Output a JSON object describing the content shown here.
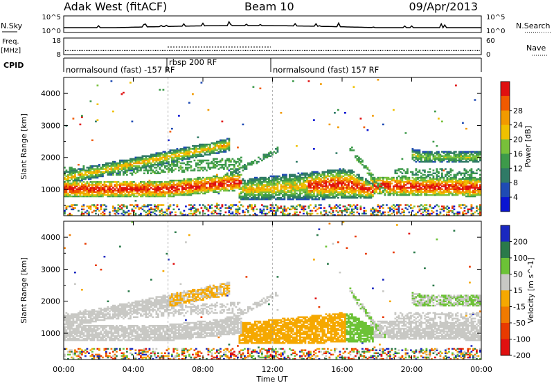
{
  "header": {
    "station": "Adak West (fitACF)",
    "beam": "Beam 10",
    "date": "09/Apr/2013"
  },
  "noise_panel": {
    "left_label": "N.Sky",
    "left_ticks": [
      "10^5",
      "10^0"
    ],
    "right_label": "N.Search",
    "right_ticks": [
      "10^5",
      "10^0"
    ]
  },
  "freq_panel": {
    "left_label_line1": "Freq.",
    "left_label_line2": "[MHz]",
    "left_ticks": [
      "18",
      "8"
    ],
    "right_label": "Nave",
    "right_ticks": [
      "60",
      "0"
    ]
  },
  "cpid_panel": {
    "label": "CPID",
    "programs": [
      {
        "name": "normalsound (fast) -157 RF",
        "start": "00:00",
        "end": "06:00"
      },
      {
        "name": "rbsp 200 RF",
        "start": "06:00",
        "end": "12:00"
      },
      {
        "name": "normalsound (fast) 157 RF",
        "start": "12:00",
        "end": "24:00"
      }
    ]
  },
  "chart_data": [
    {
      "type": "heatmap",
      "name": "power",
      "ylabel": "Slant Range [km]",
      "y_ticks": [
        "1000",
        "2000",
        "3000",
        "4000"
      ],
      "ylim": [
        180,
        4500
      ],
      "colorbar": {
        "label": "Power [dB]",
        "ticks": [
          "4",
          "8",
          "12",
          "16",
          "20",
          "24",
          "28"
        ],
        "colors": [
          "#0a14d2",
          "#1f4bb4",
          "#2f7a66",
          "#3d9a4a",
          "#78c03a",
          "#f0c000",
          "#f29a00",
          "#f05a00",
          "#e01010"
        ]
      }
    },
    {
      "type": "heatmap",
      "name": "velocity",
      "ylabel": "Slant Range [km]",
      "y_ticks": [
        "1000",
        "2000",
        "3000",
        "4000"
      ],
      "ylim": [
        180,
        4500
      ],
      "colorbar": {
        "label": "Velocity [m s^-1]",
        "ticks": [
          "200",
          "100",
          "50",
          "15",
          "-15",
          "-50",
          "-100",
          "-200"
        ],
        "colors": [
          "#1a28c0",
          "#2a7a4a",
          "#6cc236",
          "#c8c8c4",
          "#f5a800",
          "#f07a00",
          "#e83a00",
          "#e01010"
        ]
      }
    }
  ],
  "x_axis": {
    "ticks": [
      "00:00",
      "04:00",
      "08:00",
      "12:00",
      "16:00",
      "20:00",
      "00:00"
    ],
    "label": "Time UT"
  }
}
